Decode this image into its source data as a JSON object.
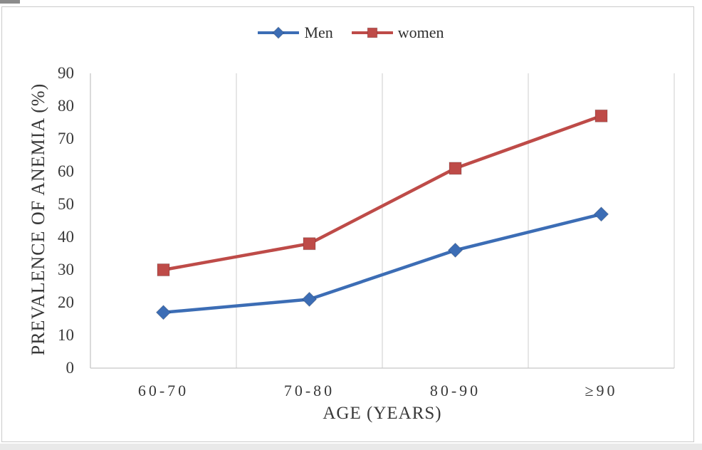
{
  "colors": {
    "men_blue": "#3C6DB5",
    "women_red": "#BE4B48",
    "gridline": "#D8D8D8",
    "axis_line": "#C6C6C6",
    "text": "#383838",
    "frame_border": "#CBCBCB",
    "bottom_strip": "#E9E9E9"
  },
  "chart_data": {
    "type": "line",
    "title": "",
    "categories": [
      "60-70",
      "70-80",
      "80-90",
      "≥90"
    ],
    "series": [
      {
        "name": "Men",
        "marker": "diamond",
        "color": "#3C6DB5",
        "values": [
          17,
          21,
          36,
          47
        ]
      },
      {
        "name": "women",
        "marker": "square",
        "color": "#BE4B48",
        "values": [
          30,
          38,
          61,
          77
        ]
      }
    ],
    "xlabel": "AGE (YEARS)",
    "ylabel": "PREVALENCE OF ANEMIA (%)",
    "ylim": [
      0,
      90
    ],
    "yticks": [
      0,
      10,
      20,
      30,
      40,
      50,
      60,
      70,
      80,
      90
    ],
    "grid": "vertical-only",
    "legend_position": "top-center"
  }
}
